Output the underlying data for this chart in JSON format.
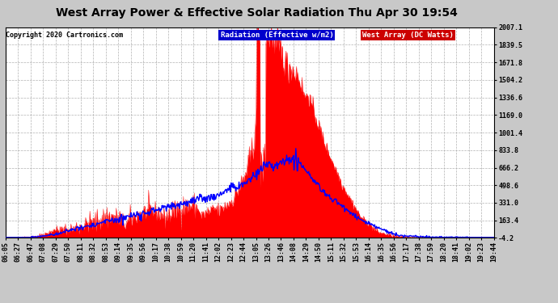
{
  "title": "West Array Power & Effective Solar Radiation Thu Apr 30 19:54",
  "copyright": "Copyright 2020 Cartronics.com",
  "legend_radiation": "Radiation (Effective w/m2)",
  "legend_west": "West Array (DC Watts)",
  "ylabel_ticks": [
    2007.1,
    1839.5,
    1671.8,
    1504.2,
    1336.6,
    1169.0,
    1001.4,
    833.8,
    666.2,
    498.6,
    331.0,
    163.4,
    -4.2
  ],
  "ymin": -4.2,
  "ymax": 2007.1,
  "background_color": "#c8c8c8",
  "plot_bg_color": "#ffffff",
  "grid_color": "#aaaaaa",
  "red_fill_color": "#ff0000",
  "blue_line_color": "#0000ff",
  "title_color": "#000000",
  "title_fontsize": 10,
  "tick_fontsize": 6.0,
  "time_labels": [
    "06:05",
    "06:27",
    "06:47",
    "07:08",
    "07:29",
    "07:50",
    "08:11",
    "08:32",
    "08:53",
    "09:14",
    "09:35",
    "09:56",
    "10:17",
    "10:38",
    "10:59",
    "11:20",
    "11:41",
    "12:02",
    "12:23",
    "12:44",
    "13:05",
    "13:26",
    "13:46",
    "14:08",
    "14:29",
    "14:50",
    "15:11",
    "15:32",
    "15:53",
    "16:14",
    "16:35",
    "16:56",
    "17:17",
    "17:38",
    "17:59",
    "18:20",
    "18:41",
    "19:02",
    "19:23",
    "19:44"
  ]
}
